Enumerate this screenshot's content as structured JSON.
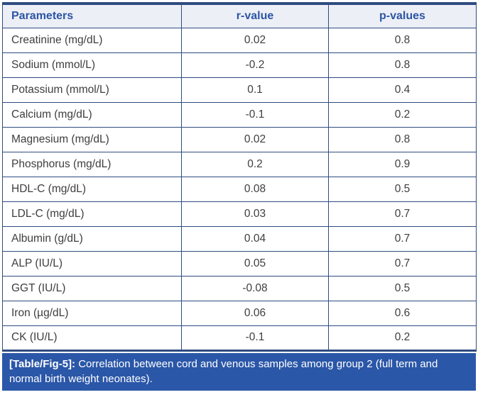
{
  "table": {
    "columns": [
      "Parameters",
      "r-value",
      "p-values"
    ],
    "rows": [
      {
        "parameter": "Creatinine (mg/dL)",
        "r": "0.02",
        "p": "0.8"
      },
      {
        "parameter": "Sodium (mmol/L)",
        "r": "-0.2",
        "p": "0.8"
      },
      {
        "parameter": "Potassium (mmol/L)",
        "r": "0.1",
        "p": "0.4"
      },
      {
        "parameter": "Calcium (mg/dL)",
        "r": "-0.1",
        "p": "0.2"
      },
      {
        "parameter": "Magnesium (mg/dL)",
        "r": "0.02",
        "p": "0.8"
      },
      {
        "parameter": "Phosphorus (mg/dL)",
        "r": "0.2",
        "p": "0.9"
      },
      {
        "parameter": "HDL-C (mg/dL)",
        "r": "0.08",
        "p": "0.5"
      },
      {
        "parameter": "LDL-C (mg/dL)",
        "r": "0.03",
        "p": "0.7"
      },
      {
        "parameter": "Albumin (g/dL)",
        "r": "0.04",
        "p": "0.7"
      },
      {
        "parameter": "ALP (IU/L)",
        "r": "0.05",
        "p": "0.7"
      },
      {
        "parameter": "GGT (IU/L)",
        "r": "-0.08",
        "p": "0.5"
      },
      {
        "parameter": "Iron (µg/dL)",
        "r": "0.06",
        "p": "0.6"
      },
      {
        "parameter": "CK (IU/L)",
        "r": "-0.1",
        "p": "0.2"
      }
    ]
  },
  "caption": {
    "label": "[Table/Fig-5]:",
    "text": "Correlation between cord and venous samples among group 2 (full term and normal birth weight neonates)."
  },
  "colors": {
    "border": "#2e4c80",
    "header_bg": "#edeff6",
    "header_text": "#2b55a4",
    "body_text": "#3e3e3e",
    "caption_bg": "#2b57a8",
    "caption_text": "#ffffff"
  },
  "chart_data": {
    "type": "table",
    "title": "[Table/Fig-5]: Correlation between cord and venous samples among group 2 (full term and normal birth weight neonates).",
    "columns": [
      "Parameters",
      "r-value",
      "p-values"
    ],
    "rows": [
      [
        "Creatinine (mg/dL)",
        0.02,
        0.8
      ],
      [
        "Sodium (mmol/L)",
        -0.2,
        0.8
      ],
      [
        "Potassium (mmol/L)",
        0.1,
        0.4
      ],
      [
        "Calcium (mg/dL)",
        -0.1,
        0.2
      ],
      [
        "Magnesium (mg/dL)",
        0.02,
        0.8
      ],
      [
        "Phosphorus (mg/dL)",
        0.2,
        0.9
      ],
      [
        "HDL-C (mg/dL)",
        0.08,
        0.5
      ],
      [
        "LDL-C (mg/dL)",
        0.03,
        0.7
      ],
      [
        "Albumin (g/dL)",
        0.04,
        0.7
      ],
      [
        "ALP (IU/L)",
        0.05,
        0.7
      ],
      [
        "GGT (IU/L)",
        -0.08,
        0.5
      ],
      [
        "Iron (µg/dL)",
        0.06,
        0.6
      ],
      [
        "CK (IU/L)",
        -0.1,
        0.2
      ]
    ]
  }
}
